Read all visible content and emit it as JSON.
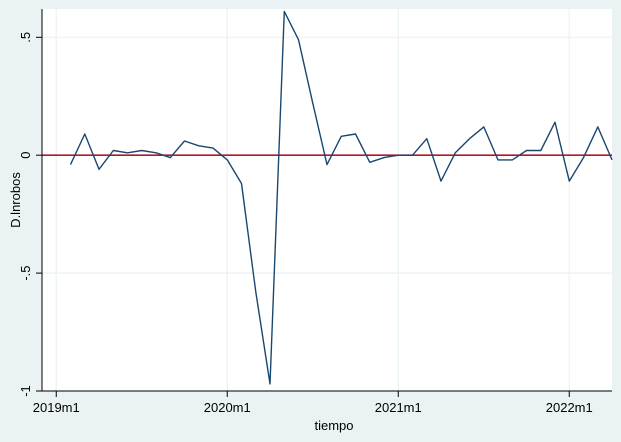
{
  "chart_data": {
    "type": "line",
    "xlabel": "tiempo",
    "ylabel": "D.lnrobos",
    "ylim": [
      -1.0,
      0.62
    ],
    "grid": true,
    "y_ticks": [
      {
        "value": 0.5,
        "label": ".5"
      },
      {
        "value": 0.0,
        "label": "0"
      },
      {
        "value": -0.5,
        "label": "-.5"
      },
      {
        "value": -1.0,
        "label": "-1"
      }
    ],
    "x_ticks": [
      {
        "value": "2019m1",
        "label": "2019m1"
      },
      {
        "value": "2020m1",
        "label": "2020m1"
      },
      {
        "value": "2021m1",
        "label": "2021m1"
      },
      {
        "value": "2022m1",
        "label": "2022m1"
      }
    ],
    "xlim": [
      "2018m12",
      "2022m4"
    ],
    "reference_line": {
      "y": 0,
      "color": "#b2182b"
    },
    "series": [
      {
        "color": "#1a476f",
        "x": [
          "2019m2",
          "2019m3",
          "2019m4",
          "2019m5",
          "2019m6",
          "2019m7",
          "2019m8",
          "2019m9",
          "2019m10",
          "2019m11",
          "2019m12",
          "2020m1",
          "2020m2",
          "2020m3",
          "2020m4",
          "2020m5",
          "2020m6",
          "2020m7",
          "2020m8",
          "2020m9",
          "2020m10",
          "2020m11",
          "2020m12",
          "2021m1",
          "2021m2",
          "2021m3",
          "2021m4",
          "2021m5",
          "2021m6",
          "2021m7",
          "2021m8",
          "2021m9",
          "2021m10",
          "2021m11",
          "2021m12",
          "2022m1",
          "2022m2",
          "2022m3",
          "2022m4"
        ],
        "values": [
          -0.04,
          0.09,
          -0.06,
          0.02,
          0.01,
          0.02,
          0.01,
          -0.01,
          0.06,
          0.04,
          0.03,
          -0.02,
          -0.12,
          -0.58,
          -0.97,
          0.61,
          0.49,
          0.22,
          -0.04,
          0.08,
          0.09,
          -0.03,
          -0.01,
          0.0,
          0.0,
          0.07,
          -0.11,
          0.01,
          0.07,
          0.12,
          -0.02,
          -0.02,
          0.02,
          0.02,
          0.14,
          -0.11,
          -0.01,
          0.12,
          -0.02
        ]
      }
    ]
  }
}
